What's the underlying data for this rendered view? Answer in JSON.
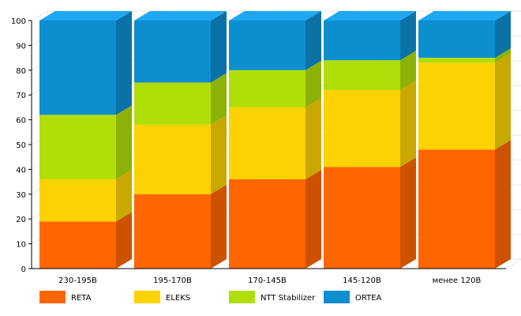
{
  "chart_data": {
    "type": "bar",
    "stacked": true,
    "style": "3d",
    "categories": [
      "230-195В",
      "195-170В",
      "170-145В",
      "145-120В",
      "менее 120В"
    ],
    "series": [
      {
        "name": "RETA",
        "values": [
          19,
          30,
          36,
          41,
          48
        ],
        "color": "#ff6600",
        "side_color": "#cc5200",
        "top_color": "#ff7f26"
      },
      {
        "name": "ELEKS",
        "values": [
          17,
          28,
          29,
          31,
          35
        ],
        "color": "#fcd202",
        "side_color": "#c9a801",
        "top_color": "#fddb33"
      },
      {
        "name": "NTT Stabilizer",
        "values": [
          26,
          17,
          15,
          12,
          2
        ],
        "color": "#b0de09",
        "side_color": "#8db207",
        "top_color": "#bfe53a"
      },
      {
        "name": "ORTEA",
        "values": [
          38,
          25,
          20,
          16,
          15
        ],
        "color": "#0d8ecf",
        "side_color": "#0a72a6",
        "top_color": "#1ea8f0"
      }
    ],
    "ylim": [
      0,
      100
    ],
    "yticks": [
      0,
      10,
      20,
      30,
      40,
      50,
      60,
      70,
      80,
      90,
      100
    ],
    "grid": true,
    "legend_position": "bottom",
    "xlabel": "",
    "ylabel": "",
    "title": ""
  }
}
